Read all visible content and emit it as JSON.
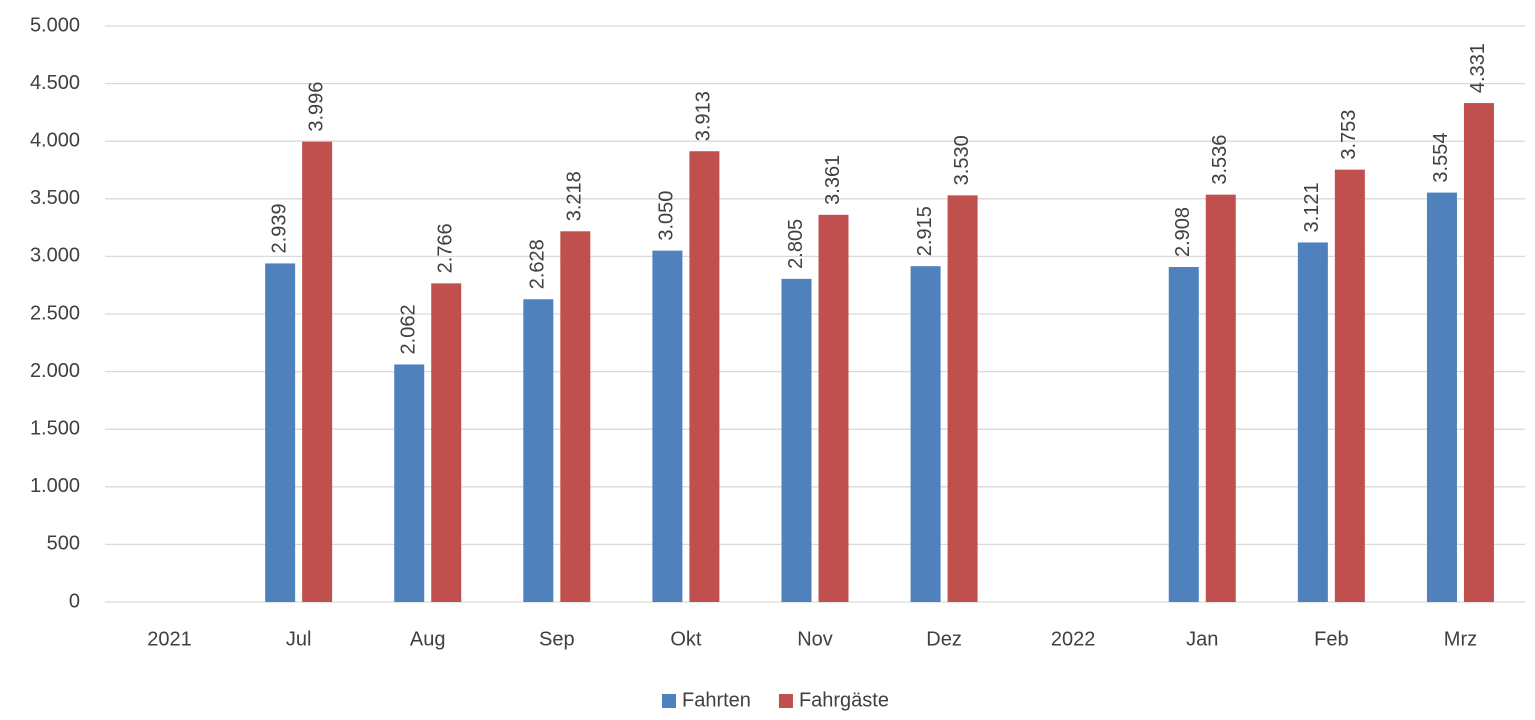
{
  "chart_data": {
    "type": "bar",
    "categories": [
      "2021",
      "Jul",
      "Aug",
      "Sep",
      "Okt",
      "Nov",
      "Dez",
      "2022",
      "Jan",
      "Feb",
      "Mrz"
    ],
    "series": [
      {
        "name": "Fahrten",
        "color": "#4f81bd",
        "values": [
          null,
          2939,
          2062,
          2628,
          3050,
          2805,
          2915,
          null,
          2908,
          3121,
          3554
        ],
        "value_labels": [
          null,
          "2.939",
          "2.062",
          "2.628",
          "3.050",
          "2.805",
          "2.915",
          null,
          "2.908",
          "3.121",
          "3.554"
        ]
      },
      {
        "name": "Fahrgäste",
        "color": "#c0504d",
        "values": [
          null,
          3996,
          2766,
          3218,
          3913,
          3361,
          3530,
          null,
          3536,
          3753,
          4331
        ],
        "value_labels": [
          null,
          "3.996",
          "2.766",
          "3.218",
          "3.913",
          "3.361",
          "3.530",
          null,
          "3.536",
          "3.753",
          "4.331"
        ]
      }
    ],
    "ylim": [
      0,
      5000
    ],
    "yticks": [
      0,
      500,
      {
        "value": 1000,
        "label": "1.000"
      },
      {
        "value": 1500,
        "label": "1.500"
      },
      {
        "value": 2000,
        "label": "2.000"
      },
      {
        "value": 2500,
        "label": "2.500"
      },
      {
        "value": 3000,
        "label": "3.000"
      },
      {
        "value": 3500,
        "label": "3.500"
      },
      {
        "value": 4000,
        "label": "4.000"
      },
      {
        "value": 4500,
        "label": "4.500"
      },
      {
        "value": 5000,
        "label": "5.000"
      }
    ],
    "grid": true,
    "legend": "bottom"
  }
}
